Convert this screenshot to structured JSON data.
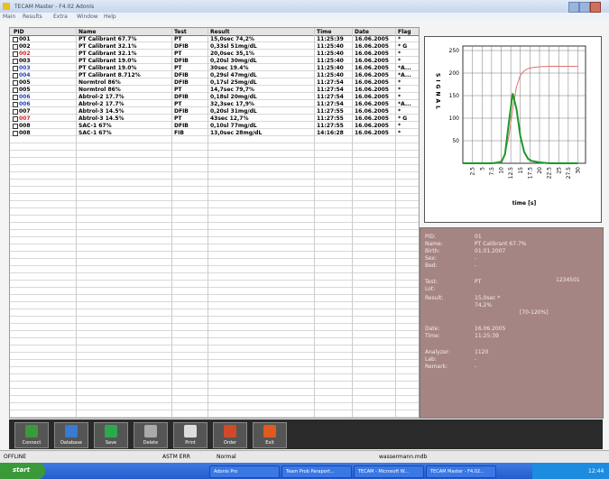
{
  "window": {
    "title": "TECAM Master - F4.02 Adonis",
    "menu": [
      "Main",
      "Results",
      "Extra",
      "Window",
      "Help"
    ]
  },
  "table": {
    "columns": [
      "PID",
      "Name",
      "Test",
      "Result",
      "Time",
      "Date",
      "Flag"
    ],
    "rows": [
      [
        "001",
        "PT Calibrant 67.7%",
        "PT",
        "15,0sec 74,2%",
        "11:25:39",
        "16.06.2005",
        "*"
      ],
      [
        "002",
        "PT Calibrant 32.1%",
        "DFIB",
        "0,33sl 51mg/dL",
        "11:25:40",
        "16.06.2005",
        "* G"
      ],
      [
        "002",
        "PT Calibrant 32.1%",
        "PT",
        "20,0sec 35,1%",
        "11:25:40",
        "16.06.2005",
        "*"
      ],
      [
        "003",
        "PT Calibrant 19.0%",
        "DFIB",
        "0,20sl 30mg/dL",
        "11:25:40",
        "16.06.2005",
        "*"
      ],
      [
        "003",
        "PT Calibrant 19.0%",
        "PT",
        "30sec 19.4%",
        "11:25:40",
        "16.06.2005",
        "*A..."
      ],
      [
        "004",
        "PT Calibrant 8.712%",
        "DFIB",
        "0,29sl 47mg/dL",
        "11:25:40",
        "16.06.2005",
        "*A..."
      ],
      [
        "005",
        "Normtrol 86%",
        "DFIB",
        "0,17sl 25mg/dL",
        "11:27:54",
        "16.06.2005",
        "*"
      ],
      [
        "005",
        "Normtrol 86%",
        "PT",
        "14,7sec 79,7%",
        "11:27:54",
        "16.06.2005",
        "*"
      ],
      [
        "006",
        "Abtrol-2 17.7%",
        "DFIB",
        "0,18sl 20mg/dL",
        "11:27:54",
        "16.06.2005",
        "*"
      ],
      [
        "006",
        "Abtrol-2 17.7%",
        "PT",
        "32,3sec 17,9%",
        "11:27:54",
        "16.06.2005",
        "*A..."
      ],
      [
        "007",
        "Abtrol-3 14.5%",
        "DFIB",
        "0,20sl 31mg/dL",
        "11:27:55",
        "16.06.2005",
        "*"
      ],
      [
        "007",
        "Abtrol-3 14.5%",
        "PT",
        "43sec 12,7%",
        "11:27:55",
        "16.06.2005",
        "* G"
      ],
      [
        "008",
        "SAC-1 67%",
        "DFIB",
        "0,10sl 77mg/dL",
        "11:27:55",
        "16.06.2005",
        "*"
      ],
      [
        "008",
        "SAC-1 67%",
        "FIB",
        "13,0sec 28mg/dL",
        "14:16:28",
        "16.06.2005",
        "*"
      ]
    ],
    "pid_colors": [
      "#000",
      "#000",
      "#d02020",
      "#000",
      "#2040c0",
      "#2040c0",
      "#000",
      "#000",
      "#2040c0",
      "#2040c0",
      "#000",
      "#d02020",
      "#000",
      "#000"
    ]
  },
  "graph": {
    "ylabel": "SIGNAL",
    "xlabel": "time [s]",
    "xlim": [
      0,
      32
    ],
    "ylim": [
      0,
      260
    ],
    "yticks": [
      50,
      100,
      150,
      200,
      250
    ],
    "xticks": [
      2.5,
      5,
      7.5,
      10,
      12.5,
      15,
      17.5,
      20,
      22.5,
      25,
      27.5,
      30
    ],
    "x": [
      0,
      2.5,
      5,
      7.5,
      10,
      11,
      12,
      13,
      14,
      15,
      16,
      17,
      18,
      20,
      22.5,
      25,
      27.5,
      30
    ],
    "series": [
      {
        "color": "#e07070",
        "values": [
          0,
          0,
          0,
          0,
          5,
          20,
          60,
          120,
          170,
          195,
          205,
          210,
          212,
          214,
          215,
          215,
          215,
          215
        ]
      },
      {
        "color": "#1a9a2a",
        "values": [
          0,
          0,
          0,
          0,
          2,
          20,
          90,
          155,
          120,
          60,
          25,
          10,
          5,
          2,
          0,
          0,
          0,
          0
        ]
      }
    ]
  },
  "info": [
    [
      "PID:",
      "01"
    ],
    [
      "Name:",
      "PT Calibrant 67.7%"
    ],
    [
      "Birth:",
      "01.01.2007"
    ],
    [
      "Sex:",
      "-"
    ],
    [
      "Bed:",
      "-"
    ],
    [
      "Test:",
      "PT"
    ],
    [
      "Lot:",
      "1234501"
    ],
    [
      "Result:",
      "15,0sec *"
    ],
    [
      "",
      "74,2%"
    ],
    [
      "",
      "[70-120%]"
    ],
    [
      "Date:",
      "16.06.2005"
    ],
    [
      "Time:",
      "11:25:39"
    ],
    [
      "Analyzer:",
      "1120"
    ],
    [
      "Lab:",
      "-"
    ],
    [
      "Remark:",
      "-"
    ]
  ],
  "toolbar": [
    "Connect",
    "Database",
    "Save",
    "Delete",
    "Print",
    "Order",
    "Exit"
  ],
  "status": [
    "OFFLINE",
    "ASTM ERR",
    "Normal",
    "wassermann.mdb"
  ],
  "taskbar": {
    "start": "start",
    "items": [
      "Adonis Pro",
      "Team Prob Paraport...",
      "TECAM - Microsoft W...",
      "TECAM Master - F4.02..."
    ],
    "clock": "12:44"
  }
}
